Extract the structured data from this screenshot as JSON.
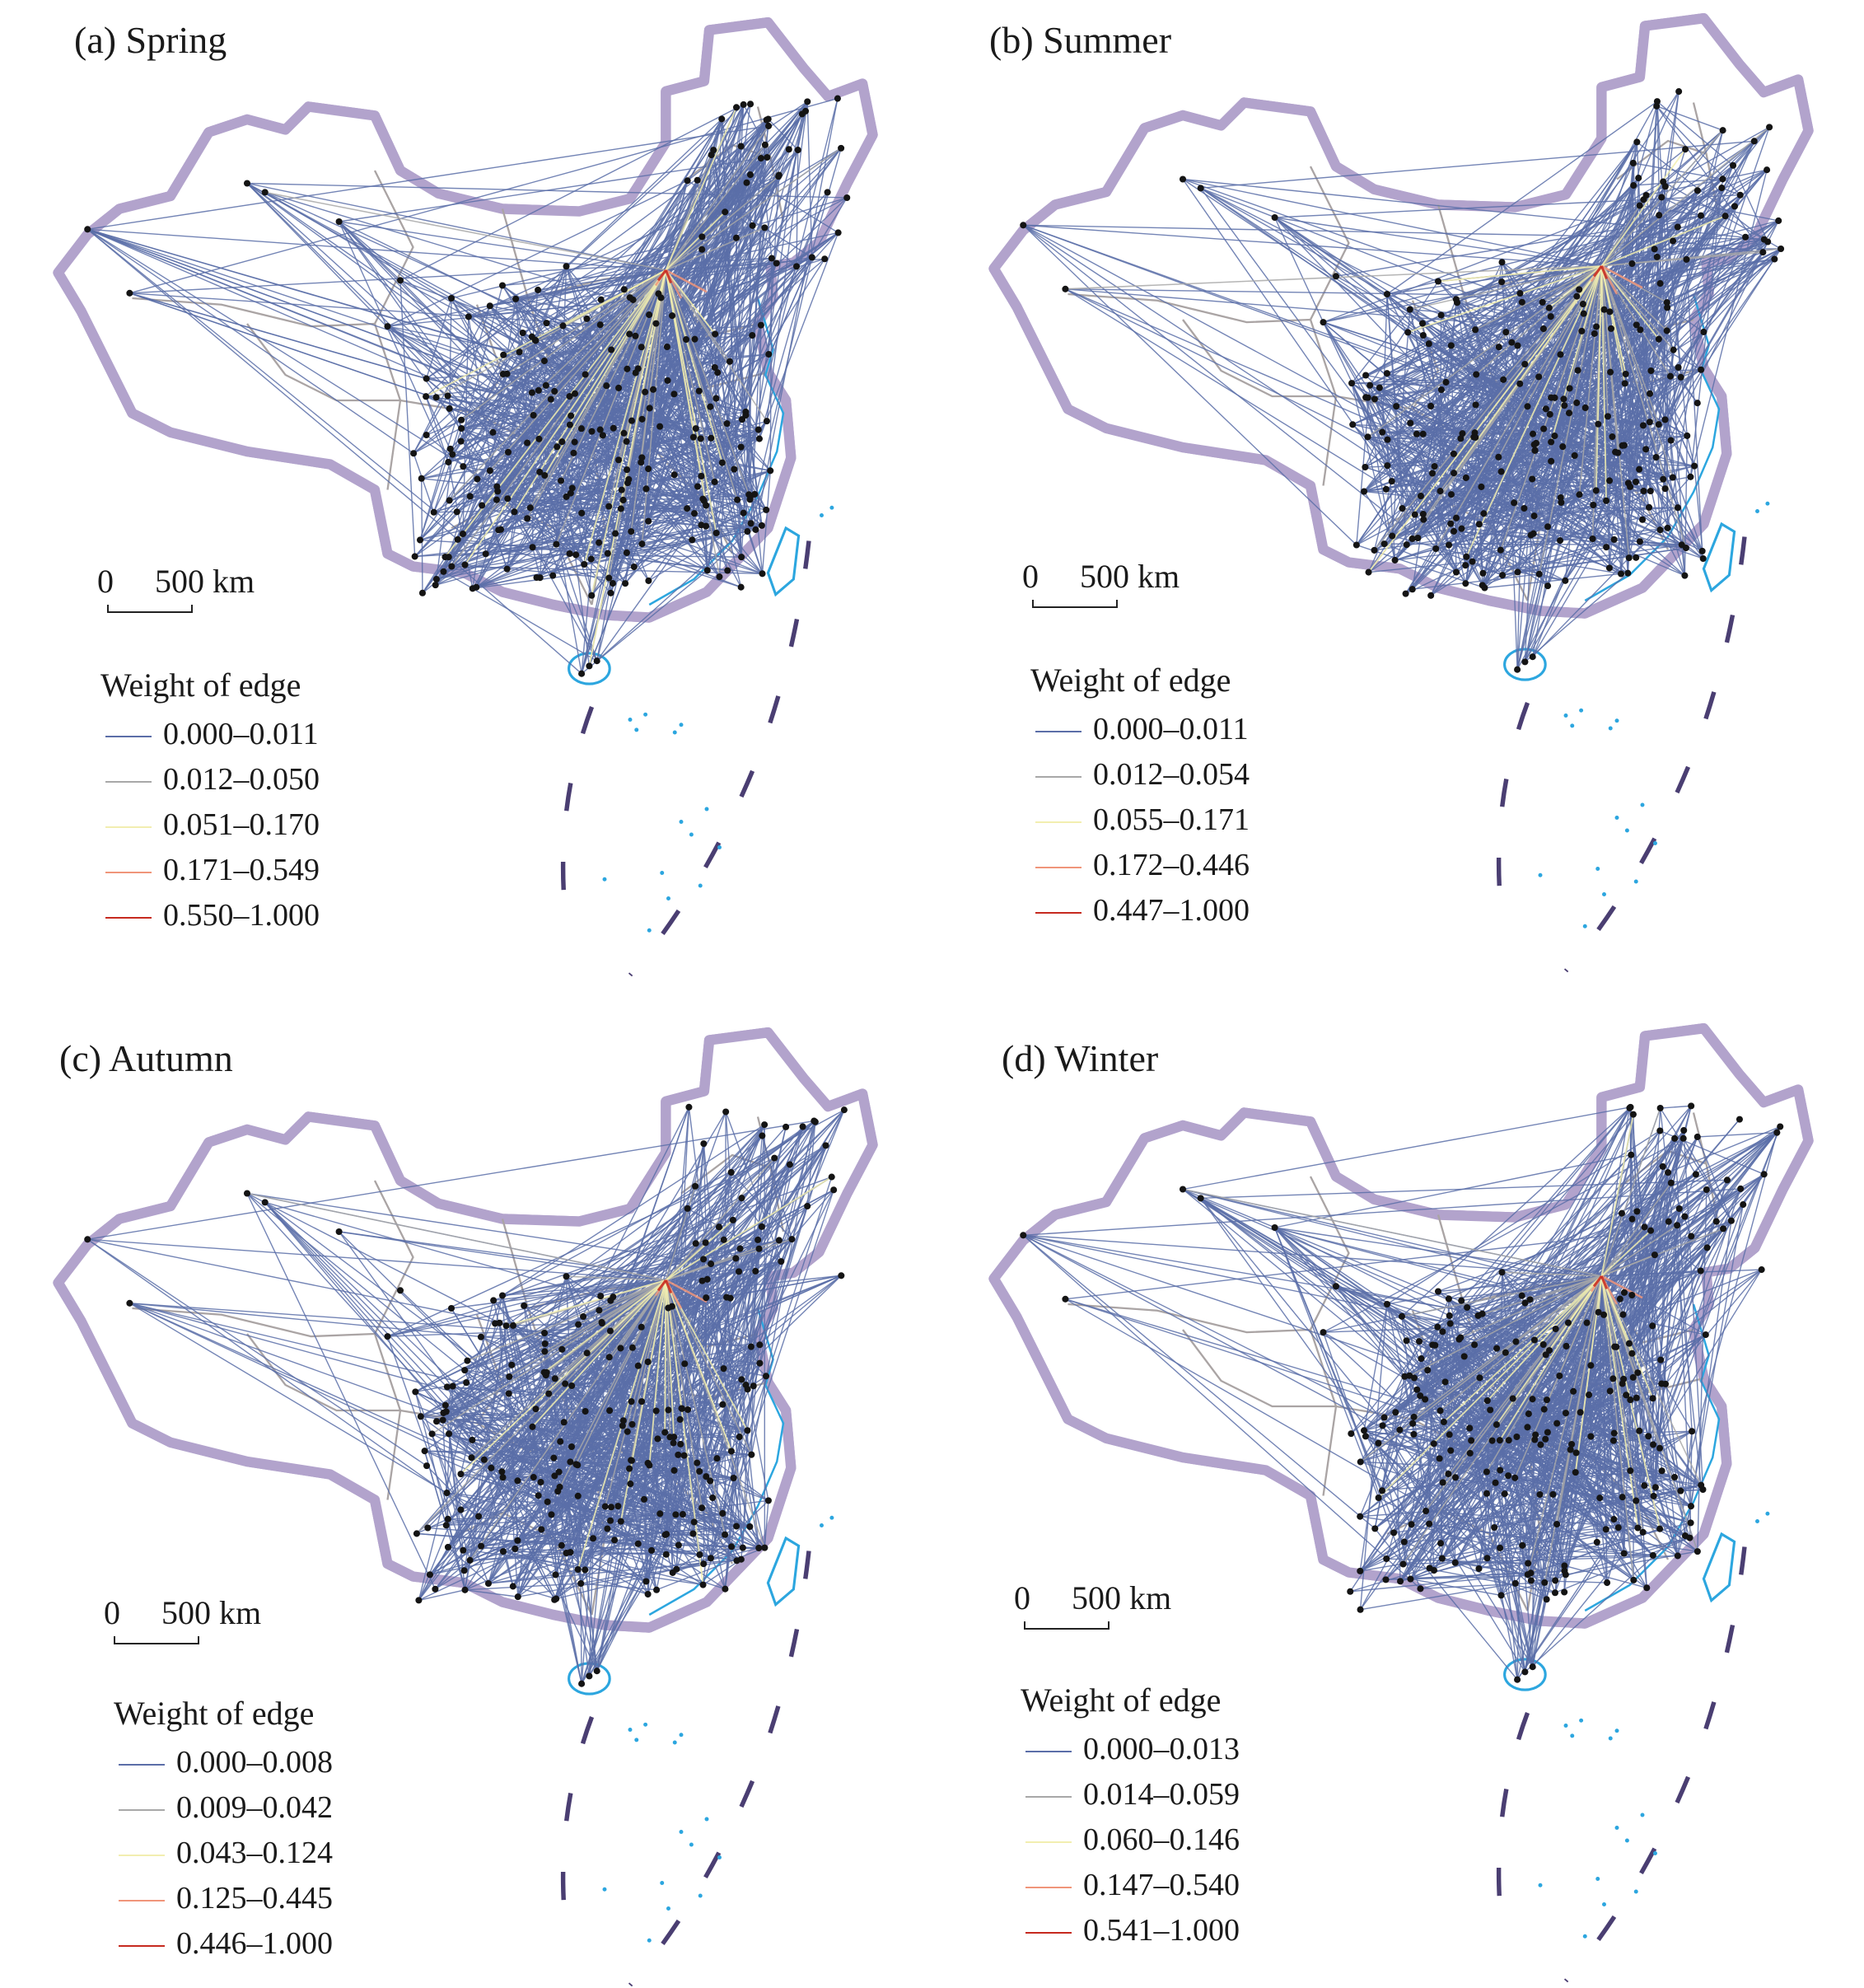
{
  "panels": [
    {
      "title": "(a) Spring",
      "scale": {
        "zero": "0",
        "dist": "500 km"
      },
      "legend": {
        "title": "Weight of edge",
        "classes": [
          "0.000–0.011",
          "0.012–0.050",
          "0.051–0.170",
          "0.171–0.549",
          "0.550–1.000"
        ]
      }
    },
    {
      "title": "(b) Summer",
      "scale": {
        "zero": "0",
        "dist": "500 km"
      },
      "legend": {
        "title": "Weight of edge",
        "classes": [
          "0.000–0.011",
          "0.012–0.054",
          "0.055–0.171",
          "0.172–0.446",
          "0.447–1.000"
        ]
      }
    },
    {
      "title": "(c) Autumn",
      "scale": {
        "zero": "0",
        "dist": "500 km"
      },
      "legend": {
        "title": "Weight of edge",
        "classes": [
          "0.000–0.008",
          "0.009–0.042",
          "0.043–0.124",
          "0.125–0.445",
          "0.446–1.000"
        ]
      }
    },
    {
      "title": "(d) Winter",
      "scale": {
        "zero": "0",
        "dist": "500 km"
      },
      "legend": {
        "title": "Weight of edge",
        "classes": [
          "0.000–0.013",
          "0.014–0.059",
          "0.060–0.146",
          "0.147–0.540",
          "0.541–1.000"
        ]
      }
    }
  ],
  "edge_colors": [
    "#5b6ea8",
    "#a8a8a8",
    "#f2eeb0",
    "#f0957a",
    "#c62a1f"
  ],
  "colors": {
    "border_halo": "#b2a3cc",
    "border": "#4a3e72",
    "province": "#aaa4a4",
    "coast": "#2ca6df",
    "node": "#141414"
  }
}
